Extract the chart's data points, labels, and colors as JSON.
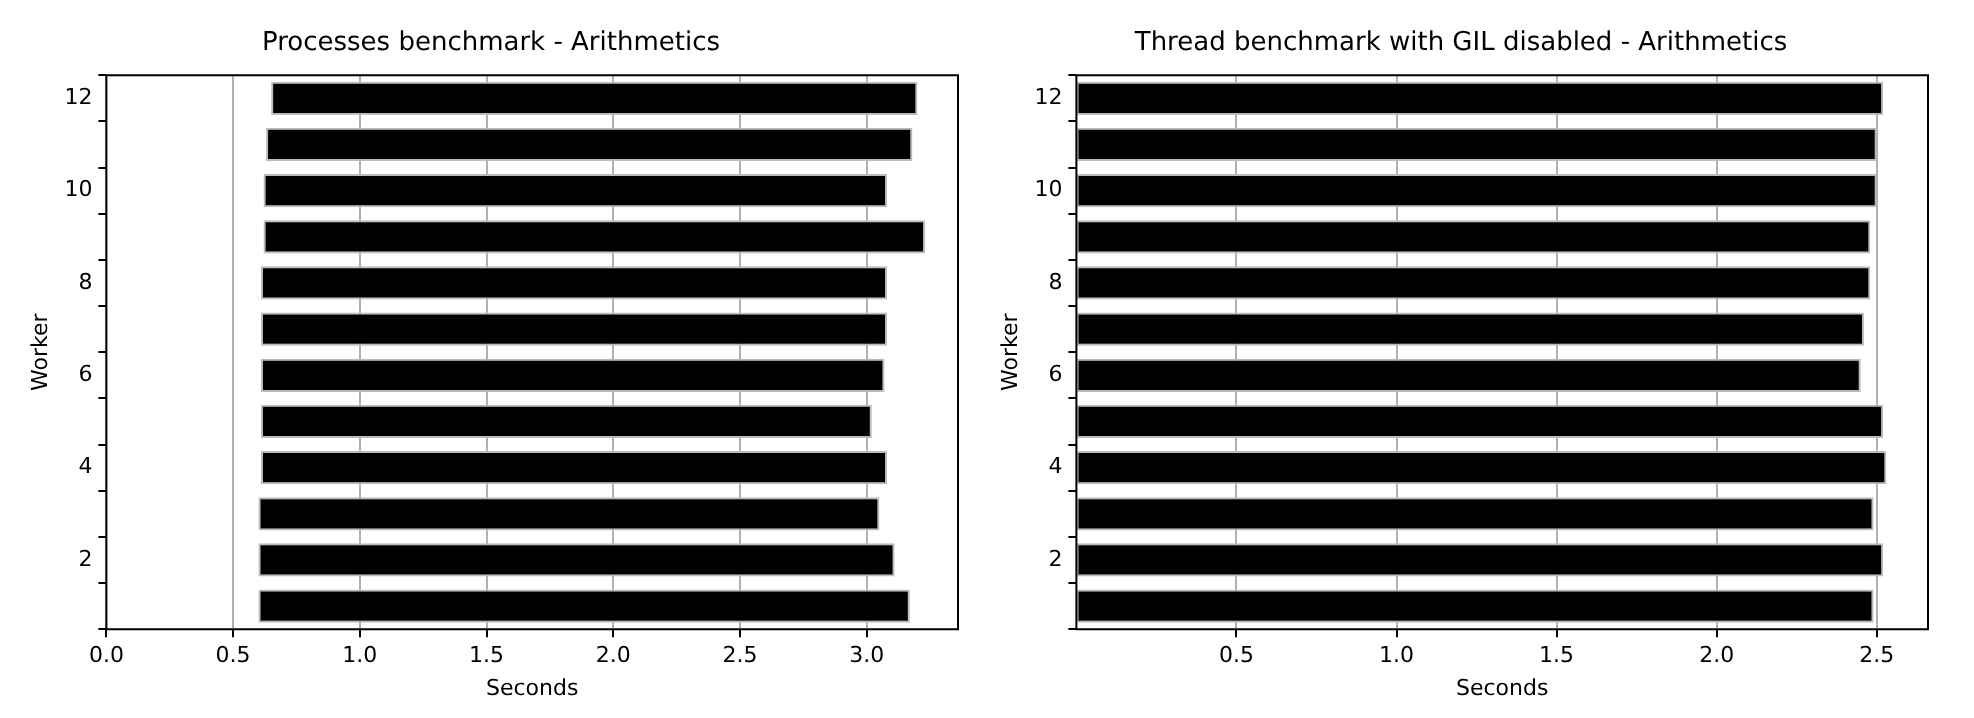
{
  "chart_data": [
    {
      "type": "bar",
      "orientation": "horizontal",
      "title": "Processes benchmark - Arithmetics",
      "xlabel": "Seconds",
      "ylabel": "Worker",
      "categories": [
        "12",
        null,
        "10",
        null,
        "8",
        null,
        "6",
        null,
        "4",
        null,
        "2",
        null
      ],
      "series": [
        {
          "color": "#000000",
          "values": [
            2.55,
            2.55,
            2.46,
            2.61,
            2.47,
            2.47,
            2.46,
            2.41,
            2.47,
            2.45,
            2.51,
            2.57
          ],
          "base": [
            0.65,
            0.63,
            0.62,
            0.62,
            0.61,
            0.61,
            0.61,
            0.61,
            0.61,
            0.6,
            0.6,
            0.6
          ]
        }
      ],
      "xlim": [
        0,
        3.36
      ],
      "xticks": [
        {
          "value": 0,
          "label": "0.0"
        },
        0.5,
        {
          "value": 1,
          "label": "1.0"
        },
        1.5,
        {
          "value": 2,
          "label": "2.0"
        },
        2.5,
        {
          "value": 3,
          "label": "3.0"
        }
      ],
      "grid": "x"
    },
    {
      "type": "bar",
      "orientation": "horizontal",
      "title": "Thread benchmark with GIL disabled - Arithmetics",
      "xlabel": "Seconds",
      "ylabel": "Worker",
      "categories": [
        "12",
        null,
        "10",
        null,
        "8",
        null,
        "6",
        null,
        "4",
        null,
        "2",
        null
      ],
      "series": [
        {
          "color": "#000000",
          "values": [
            2.52,
            2.5,
            2.5,
            2.48,
            2.48,
            2.46,
            2.45,
            2.52,
            2.53,
            2.49,
            2.52,
            2.49
          ]
        }
      ],
      "xlim": [
        0,
        2.66
      ],
      "xticks": [
        0.5,
        {
          "value": 1,
          "label": "1.0"
        },
        1.5,
        {
          "value": 2,
          "label": "2.0"
        },
        2.5
      ],
      "grid": "x"
    }
  ]
}
